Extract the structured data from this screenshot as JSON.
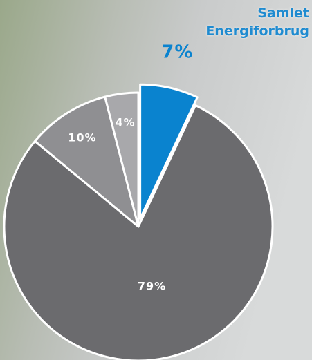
{
  "chart_data": {
    "type": "pie",
    "title": "Samlet Energiforbrug",
    "values": [
      7,
      79,
      10,
      4
    ],
    "value_labels": [
      "7%",
      "79%",
      "10%",
      "4%"
    ],
    "colors": [
      "#0a83cf",
      "#6b6b6e",
      "#8f8f92",
      "#a8a8ab"
    ],
    "exploded": [
      true,
      false,
      false,
      false
    ]
  }
}
